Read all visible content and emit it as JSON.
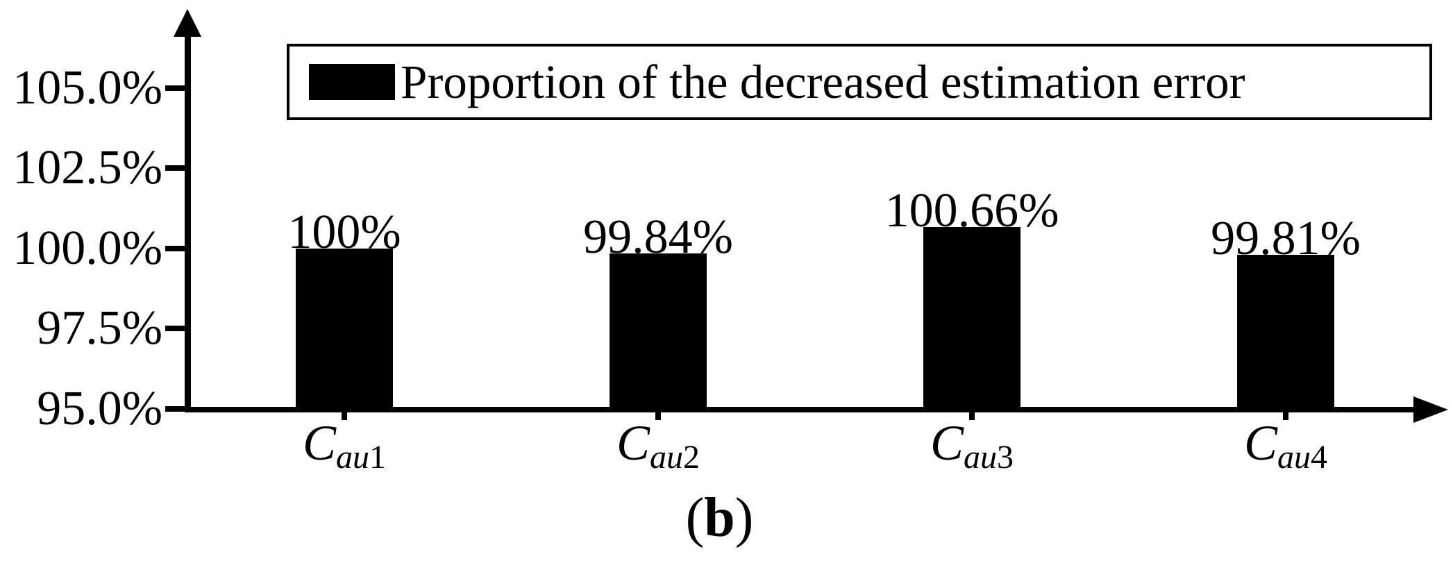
{
  "page": {
    "background": "#ffffff",
    "ink": "#000000"
  },
  "legend": {
    "label": "Proportion of the decreased estimation error",
    "swatch_color": "#000000"
  },
  "caption": {
    "open": "(",
    "letter": "b",
    "close": ")"
  },
  "chart_data": {
    "type": "bar",
    "title": "",
    "xlabel": "",
    "ylabel": "",
    "grid": false,
    "background_color": "#ffffff",
    "bar_color": "#000000",
    "legend_position": "top",
    "legend_entries": [
      "Proportion of the decreased estimation error"
    ],
    "ylim": [
      95.0,
      106.7
    ],
    "yticks": {
      "values": [
        105.0,
        102.5,
        100.0,
        97.5,
        95.0
      ],
      "labels": [
        "105.0%",
        "102.5%",
        "100.0%",
        "97.5%",
        "95.0%"
      ]
    },
    "categories": [
      "Cau1",
      "Cau2",
      "Cau3",
      "Cau4"
    ],
    "categories_rich": [
      {
        "base": "C",
        "subscript_italic": "au",
        "subscript_digit": "1"
      },
      {
        "base": "C",
        "subscript_italic": "au",
        "subscript_digit": "2"
      },
      {
        "base": "C",
        "subscript_italic": "au",
        "subscript_digit": "3"
      },
      {
        "base": "C",
        "subscript_italic": "au",
        "subscript_digit": "4"
      }
    ],
    "series": [
      {
        "name": "Proportion of the decreased estimation error",
        "values": [
          100,
          99.84,
          100.66,
          99.81
        ],
        "value_labels": [
          "100%",
          "99.84%",
          "100.66%",
          "99.81%"
        ]
      }
    ]
  }
}
